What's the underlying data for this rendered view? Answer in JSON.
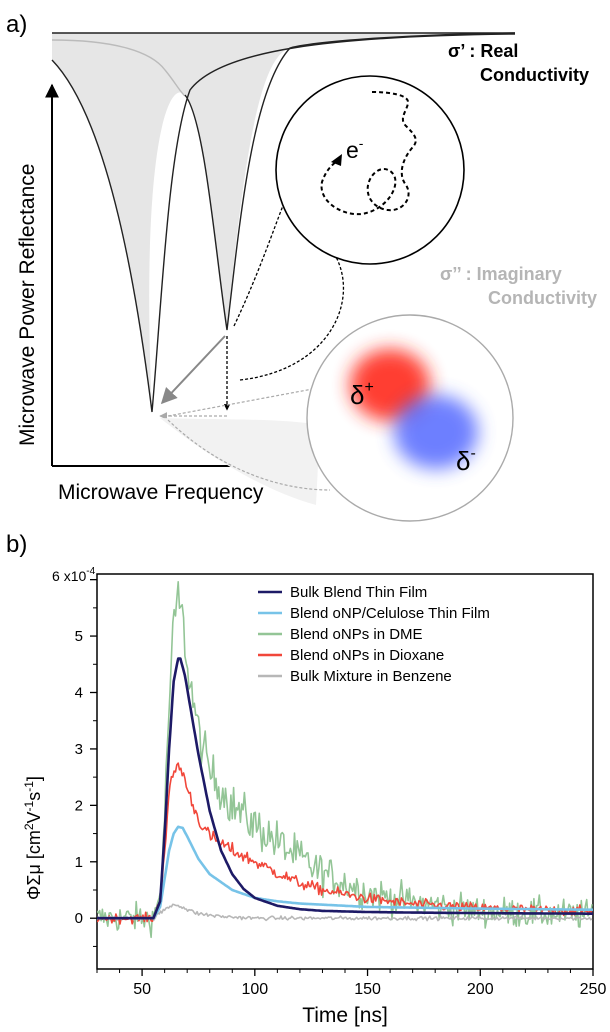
{
  "panel_a": {
    "label": "a)",
    "y_axis_label": "Microwave Power Reflectance",
    "x_axis_label": "Microwave Frequency",
    "real": {
      "symbol": "σ’",
      "text_line1": ": Real",
      "text_line2": "Conductivity"
    },
    "imag": {
      "symbol": "σ’’",
      "text_line1": ": Imaginary",
      "text_line2": "Conductivity"
    },
    "electron_label": "e",
    "electron_sup": "-",
    "delta": "δ",
    "delta_plus": "+",
    "delta_minus": "-",
    "colors": {
      "fill": "#e6e6e6",
      "line": "#222222",
      "grey_line": "#bbbbbb",
      "imag_text": "#b5b5b5",
      "positive": "#ff2a1a",
      "negative": "#3c55ff"
    }
  },
  "panel_b": {
    "label": "b)",
    "chart_data": {
      "type": "line",
      "xlabel": "Time [ns]",
      "ylabel": "ΦΣμ [cm²V⁻¹s⁻¹]",
      "ylabel_parts": {
        "main": "ΦΣμ [cm",
        "sup1": "2",
        "v": "V",
        "sup2": "-1",
        "s": "s",
        "sup3": "-1",
        "end": "]"
      },
      "xlim": [
        30,
        250
      ],
      "ylim": [
        -0.9,
        6.1
      ],
      "y_multiplier_label": "x10",
      "y_multiplier_exp": "-4",
      "xticks": [
        50,
        100,
        150,
        200,
        250
      ],
      "yticks": [
        0,
        1,
        2,
        3,
        4,
        5,
        6
      ],
      "grid": false,
      "legend_position": "top-right",
      "series": [
        {
          "name": "Bulk Blend Thin Film",
          "color": "#1d1a66",
          "smooth": true,
          "x": [
            30,
            55,
            58,
            60,
            62,
            64,
            66,
            67,
            69,
            72,
            75,
            80,
            85,
            90,
            95,
            100,
            110,
            120,
            130,
            150,
            170,
            200,
            250
          ],
          "y": [
            0,
            0,
            0.3,
            1.5,
            3.0,
            4.2,
            4.6,
            4.6,
            4.3,
            3.6,
            2.9,
            1.9,
            1.2,
            0.78,
            0.52,
            0.36,
            0.22,
            0.16,
            0.13,
            0.11,
            0.1,
            0.09,
            0.08
          ]
        },
        {
          "name": "Blend oNP/Celulose Thin Film",
          "color": "#77c3e8",
          "smooth": true,
          "x": [
            30,
            55,
            58,
            60,
            62,
            64,
            66,
            68,
            70,
            75,
            80,
            90,
            100,
            110,
            120,
            150,
            200,
            250
          ],
          "y": [
            0,
            0,
            0.2,
            0.7,
            1.2,
            1.5,
            1.62,
            1.6,
            1.45,
            1.05,
            0.78,
            0.5,
            0.36,
            0.3,
            0.26,
            0.2,
            0.17,
            0.15
          ]
        },
        {
          "name": "Blend oNPs in DME",
          "color": "#93c596",
          "noisy": true,
          "noise": 0.38,
          "x": [
            30,
            55,
            58,
            60,
            62,
            64,
            66,
            68,
            70,
            75,
            80,
            90,
            100,
            110,
            120,
            130,
            150,
            170,
            200,
            250
          ],
          "y": [
            0,
            0,
            0.4,
            1.8,
            3.8,
            5.2,
            5.7,
            5.3,
            4.5,
            3.3,
            2.6,
            2.0,
            1.65,
            1.35,
            1.05,
            0.8,
            0.45,
            0.28,
            0.12,
            0.05
          ]
        },
        {
          "name": "Blend oNPs in Dioxane",
          "color": "#f1473a",
          "noisy": true,
          "noise": 0.12,
          "x": [
            30,
            55,
            58,
            60,
            62,
            64,
            66,
            68,
            70,
            75,
            80,
            90,
            100,
            110,
            120,
            130,
            150,
            170,
            200,
            250
          ],
          "y": [
            0,
            0,
            0.3,
            1.2,
            2.2,
            2.6,
            2.7,
            2.6,
            2.3,
            1.75,
            1.45,
            1.2,
            1.0,
            0.8,
            0.62,
            0.5,
            0.35,
            0.25,
            0.18,
            0.12
          ]
        },
        {
          "name": "Bulk Mixture in Benzene",
          "color": "#b7b7b7",
          "noisy": true,
          "noise": 0.05,
          "x": [
            30,
            55,
            60,
            64,
            67,
            70,
            75,
            85,
            100,
            250
          ],
          "y": [
            0,
            0,
            0.15,
            0.25,
            0.22,
            0.15,
            0.08,
            0.03,
            0.0,
            0.0
          ]
        }
      ]
    }
  }
}
